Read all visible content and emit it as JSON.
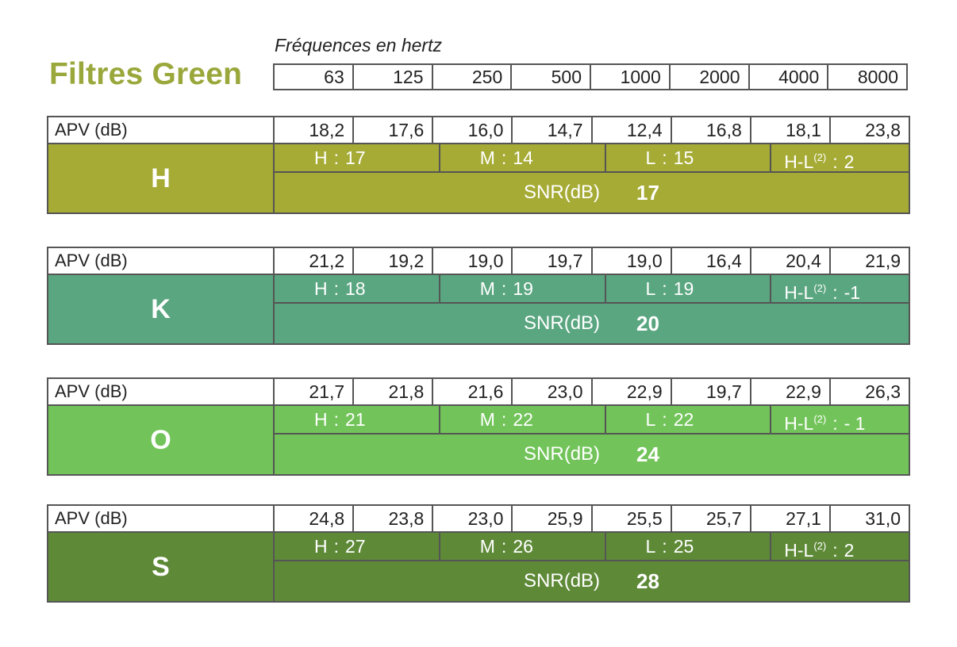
{
  "title": "Filtres Green",
  "frequency_caption": "Fréquences en hertz",
  "frequencies": [
    "63",
    "125",
    "250",
    "500",
    "1000",
    "2000",
    "4000",
    "8000"
  ],
  "apv_label": "APV (dB)",
  "snr_label": "SNR(dB)",
  "filters": [
    {
      "letter": "H",
      "color": "#a6ab35",
      "apv": [
        "18,2",
        "17,6",
        "16,0",
        "14,7",
        "12,4",
        "16,8",
        "18,1",
        "23,8"
      ],
      "h_label": "H",
      "h_colon": ":",
      "h_value": "17",
      "m_label": "M",
      "m_colon": ":",
      "m_value": "14",
      "l_label": "L",
      "l_colon": ":",
      "l_value": "15",
      "hl_label": "H-L",
      "hl_sup": "(2)",
      "hl_colon": ":",
      "hl_value": "2",
      "snr": "17"
    },
    {
      "letter": "K",
      "color": "#5aa680",
      "apv": [
        "21,2",
        "19,2",
        "19,0",
        "19,7",
        "19,0",
        "16,4",
        "20,4",
        "21,9"
      ],
      "h_label": "H",
      "h_colon": ":",
      "h_value": "18",
      "m_label": "M",
      "m_colon": ":",
      "m_value": "19",
      "l_label": "L",
      "l_colon": ":",
      "l_value": "19",
      "hl_label": "H-L",
      "hl_sup": "(2)",
      "hl_colon": ":",
      "hl_value": "-1",
      "snr": "20"
    },
    {
      "letter": "O",
      "color": "#72c45a",
      "apv": [
        "21,7",
        "21,8",
        "21,6",
        "23,0",
        "22,9",
        "19,7",
        "22,9",
        "26,3"
      ],
      "h_label": "H",
      "h_colon": ":",
      "h_value": "21",
      "m_label": "M",
      "m_colon": ":",
      "m_value": "22",
      "l_label": "L",
      "l_colon": ":",
      "l_value": "22",
      "hl_label": "H-L",
      "hl_sup": "(2)",
      "hl_colon": ":",
      "hl_value": "- 1",
      "snr": "24"
    },
    {
      "letter": "S",
      "color": "#5e8a38",
      "apv": [
        "24,8",
        "23,8",
        "23,0",
        "25,9",
        "25,5",
        "25,7",
        "27,1",
        "31,0"
      ],
      "h_label": "H",
      "h_colon": ":",
      "h_value": "27",
      "m_label": "M",
      "m_colon": ":",
      "m_value": "26",
      "l_label": "L",
      "l_colon": ":",
      "l_value": "25",
      "hl_label": "H-L",
      "hl_sup": "(2)",
      "hl_colon": ":",
      "hl_value": "2",
      "snr": "28"
    }
  ]
}
